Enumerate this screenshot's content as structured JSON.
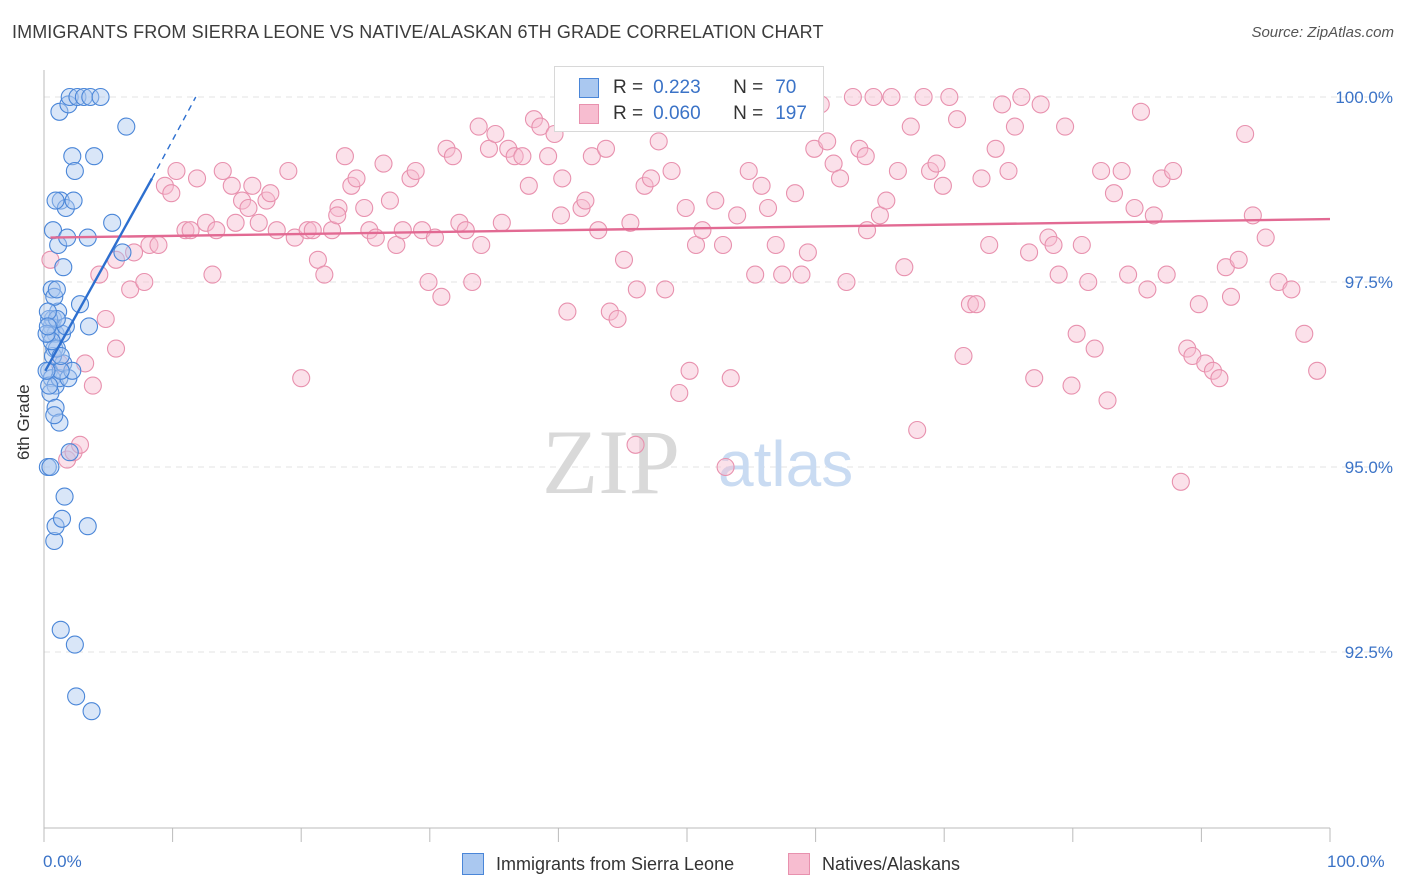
{
  "title": "IMMIGRANTS FROM SIERRA LEONE VS NATIVE/ALASKAN 6TH GRADE CORRELATION CHART",
  "source": "Source: ZipAtlas.com",
  "watermark": "ZIPatlas",
  "legend": {
    "rows": [
      {
        "r_label": "R =",
        "r_value": "0.223",
        "n_label": "N =",
        "n_value": "70"
      },
      {
        "r_label": "R =",
        "r_value": "0.060",
        "n_label": "N =",
        "n_value": "197"
      }
    ]
  },
  "bottom_legend": [
    "Immigrants from Sierra Leone",
    "Natives/Alaskans"
  ],
  "colors": {
    "blue_fill": "#aac8f0",
    "blue_stroke": "#4a86d8",
    "blue_line": "#2d6fcf",
    "pink_fill": "#f7bdd0",
    "pink_stroke": "#e891ae",
    "pink_line": "#e26a93",
    "axis_text": "#3b73c7",
    "grid": "#e3e3e3"
  },
  "chart_data": {
    "type": "scatter",
    "title": "IMMIGRANTS FROM SIERRA LEONE VS NATIVE/ALASKAN 6TH GRADE CORRELATION CHART",
    "xlabel": "",
    "ylabel": "6th Grade",
    "xlim": [
      0,
      100
    ],
    "ylim": [
      90.0,
      100.3
    ],
    "x_tick_labels": [
      "0.0%",
      "100.0%"
    ],
    "y_ticks": [
      92.5,
      95.0,
      97.5,
      100.0
    ],
    "y_tick_labels": [
      "92.5%",
      "95.0%",
      "97.5%",
      "100.0%"
    ],
    "grid": true,
    "series": [
      {
        "name": "Immigrants from Sierra Leone",
        "r": 0.223,
        "n": 70,
        "trend": {
          "x": [
            0.1,
            8.4
          ],
          "y": [
            96.3,
            98.9
          ]
        },
        "trend_dashed": {
          "x": [
            8.4,
            11.8
          ],
          "y": [
            98.9,
            100.0
          ]
        },
        "points": [
          [
            0.3,
            95.0
          ],
          [
            0.5,
            95.0
          ],
          [
            0.8,
            94.0
          ],
          [
            0.9,
            94.2
          ],
          [
            1.4,
            94.3
          ],
          [
            1.6,
            94.6
          ],
          [
            3.4,
            94.2
          ],
          [
            1.3,
            92.8
          ],
          [
            2.4,
            92.6
          ],
          [
            2.5,
            91.9
          ],
          [
            3.7,
            91.7
          ],
          [
            0.6,
            96.9
          ],
          [
            0.7,
            97.0
          ],
          [
            0.9,
            96.8
          ],
          [
            1.1,
            97.1
          ],
          [
            0.5,
            96.8
          ],
          [
            0.8,
            96.6
          ],
          [
            1.4,
            96.8
          ],
          [
            1.7,
            96.9
          ],
          [
            2.8,
            97.2
          ],
          [
            3.5,
            96.9
          ],
          [
            0.4,
            96.3
          ],
          [
            0.6,
            96.2
          ],
          [
            0.9,
            96.1
          ],
          [
            1.2,
            96.2
          ],
          [
            1.5,
            96.4
          ],
          [
            1.9,
            96.2
          ],
          [
            2.2,
            96.3
          ],
          [
            0.7,
            96.5
          ],
          [
            1.0,
            96.6
          ],
          [
            1.3,
            96.3
          ],
          [
            0.5,
            96.0
          ],
          [
            0.9,
            95.8
          ],
          [
            1.2,
            95.6
          ],
          [
            2.0,
            95.2
          ],
          [
            0.8,
            95.7
          ],
          [
            0.6,
            97.4
          ],
          [
            0.8,
            97.3
          ],
          [
            1.0,
            97.4
          ],
          [
            0.7,
            98.2
          ],
          [
            1.3,
            98.6
          ],
          [
            1.7,
            98.5
          ],
          [
            2.3,
            98.6
          ],
          [
            5.3,
            98.3
          ],
          [
            6.1,
            97.9
          ],
          [
            3.4,
            98.1
          ],
          [
            1.5,
            97.7
          ],
          [
            0.9,
            98.6
          ],
          [
            1.1,
            98.0
          ],
          [
            1.8,
            98.1
          ],
          [
            1.2,
            99.8
          ],
          [
            1.9,
            99.9
          ],
          [
            2.0,
            100.0
          ],
          [
            2.6,
            100.0
          ],
          [
            3.1,
            100.0
          ],
          [
            3.6,
            100.0
          ],
          [
            4.4,
            100.0
          ],
          [
            6.4,
            99.6
          ],
          [
            2.2,
            99.2
          ],
          [
            2.4,
            99.0
          ],
          [
            3.9,
            99.2
          ],
          [
            0.4,
            97.0
          ],
          [
            0.6,
            96.7
          ],
          [
            1.0,
            97.0
          ],
          [
            1.3,
            96.5
          ],
          [
            0.2,
            96.8
          ],
          [
            0.3,
            97.1
          ],
          [
            0.4,
            96.1
          ],
          [
            0.2,
            96.3
          ],
          [
            0.3,
            96.9
          ]
        ]
      },
      {
        "name": "Natives/Alaskans",
        "r": 0.06,
        "n": 197,
        "trend": {
          "x": [
            0.5,
            100
          ],
          "y": [
            98.1,
            98.35
          ]
        },
        "points": [
          [
            0.5,
            97.8
          ],
          [
            1.2,
            96.4
          ],
          [
            1.8,
            95.1
          ],
          [
            2.3,
            95.2
          ],
          [
            2.8,
            95.3
          ],
          [
            3.2,
            96.4
          ],
          [
            3.8,
            96.1
          ],
          [
            4.8,
            97.0
          ],
          [
            5.6,
            96.6
          ],
          [
            4.3,
            97.6
          ],
          [
            5.6,
            97.8
          ],
          [
            6.7,
            97.4
          ],
          [
            7.0,
            97.9
          ],
          [
            7.8,
            97.5
          ],
          [
            8.2,
            98.0
          ],
          [
            8.9,
            98.0
          ],
          [
            9.4,
            98.8
          ],
          [
            9.9,
            98.7
          ],
          [
            10.3,
            99.0
          ],
          [
            11.0,
            98.2
          ],
          [
            11.4,
            98.2
          ],
          [
            11.9,
            98.9
          ],
          [
            12.6,
            98.3
          ],
          [
            13.1,
            97.6
          ],
          [
            13.4,
            98.2
          ],
          [
            13.9,
            99.0
          ],
          [
            14.6,
            98.8
          ],
          [
            14.9,
            98.3
          ],
          [
            15.4,
            98.6
          ],
          [
            15.9,
            98.5
          ],
          [
            16.2,
            98.8
          ],
          [
            16.7,
            98.3
          ],
          [
            17.3,
            98.6
          ],
          [
            17.6,
            98.7
          ],
          [
            18.1,
            98.2
          ],
          [
            19.0,
            99.0
          ],
          [
            19.5,
            98.1
          ],
          [
            20.0,
            96.2
          ],
          [
            20.5,
            98.2
          ],
          [
            20.9,
            98.2
          ],
          [
            21.3,
            97.8
          ],
          [
            21.8,
            97.6
          ],
          [
            22.4,
            98.2
          ],
          [
            22.9,
            98.5
          ],
          [
            23.4,
            99.2
          ],
          [
            23.9,
            98.8
          ],
          [
            24.3,
            98.9
          ],
          [
            24.9,
            98.5
          ],
          [
            25.3,
            98.2
          ],
          [
            25.8,
            98.1
          ],
          [
            26.4,
            99.1
          ],
          [
            26.9,
            98.6
          ],
          [
            27.4,
            98.0
          ],
          [
            27.9,
            98.2
          ],
          [
            28.5,
            98.9
          ],
          [
            28.9,
            99.0
          ],
          [
            29.4,
            98.2
          ],
          [
            29.9,
            97.5
          ],
          [
            30.4,
            98.1
          ],
          [
            30.9,
            97.3
          ],
          [
            31.3,
            99.3
          ],
          [
            31.8,
            99.2
          ],
          [
            32.3,
            98.3
          ],
          [
            32.8,
            98.2
          ],
          [
            33.3,
            97.5
          ],
          [
            34.0,
            98.0
          ],
          [
            34.6,
            99.3
          ],
          [
            35.1,
            99.5
          ],
          [
            35.6,
            98.3
          ],
          [
            36.1,
            99.3
          ],
          [
            36.6,
            99.2
          ],
          [
            37.2,
            99.2
          ],
          [
            37.7,
            98.8
          ],
          [
            38.1,
            99.7
          ],
          [
            38.6,
            99.6
          ],
          [
            39.2,
            99.2
          ],
          [
            39.7,
            99.5
          ],
          [
            40.2,
            98.4
          ],
          [
            40.7,
            97.1
          ],
          [
            41.2,
            99.9
          ],
          [
            41.8,
            98.5
          ],
          [
            42.1,
            98.6
          ],
          [
            42.6,
            99.2
          ],
          [
            43.1,
            98.2
          ],
          [
            43.7,
            99.3
          ],
          [
            44.0,
            97.1
          ],
          [
            44.6,
            97.0
          ],
          [
            45.1,
            97.8
          ],
          [
            45.6,
            98.3
          ],
          [
            46.1,
            97.4
          ],
          [
            46.7,
            98.8
          ],
          [
            47.2,
            98.9
          ],
          [
            47.8,
            99.4
          ],
          [
            48.3,
            97.4
          ],
          [
            48.8,
            99.0
          ],
          [
            49.4,
            96.0
          ],
          [
            49.9,
            98.5
          ],
          [
            50.2,
            96.3
          ],
          [
            50.7,
            98.0
          ],
          [
            51.2,
            98.2
          ],
          [
            51.7,
            100.0
          ],
          [
            52.2,
            98.6
          ],
          [
            52.8,
            98.0
          ],
          [
            53.4,
            96.2
          ],
          [
            53.9,
            98.4
          ],
          [
            54.3,
            99.8
          ],
          [
            54.8,
            99.0
          ],
          [
            55.3,
            97.6
          ],
          [
            55.8,
            98.8
          ],
          [
            56.3,
            98.5
          ],
          [
            56.9,
            98.0
          ],
          [
            57.4,
            97.6
          ],
          [
            57.9,
            99.9
          ],
          [
            58.4,
            98.7
          ],
          [
            58.9,
            97.6
          ],
          [
            59.4,
            97.9
          ],
          [
            59.9,
            99.3
          ],
          [
            60.4,
            99.9
          ],
          [
            60.9,
            99.4
          ],
          [
            61.4,
            99.1
          ],
          [
            61.9,
            98.9
          ],
          [
            62.4,
            97.5
          ],
          [
            62.9,
            100.0
          ],
          [
            63.4,
            99.3
          ],
          [
            63.9,
            99.2
          ],
          [
            64.5,
            100.0
          ],
          [
            65.0,
            98.4
          ],
          [
            65.5,
            98.6
          ],
          [
            65.9,
            100.0
          ],
          [
            66.4,
            99.0
          ],
          [
            66.9,
            97.7
          ],
          [
            67.4,
            99.6
          ],
          [
            67.9,
            95.5
          ],
          [
            68.4,
            100.0
          ],
          [
            68.9,
            99.0
          ],
          [
            69.4,
            99.1
          ],
          [
            69.9,
            98.8
          ],
          [
            70.4,
            100.0
          ],
          [
            71.0,
            99.7
          ],
          [
            71.5,
            96.5
          ],
          [
            72.0,
            97.2
          ],
          [
            72.5,
            97.2
          ],
          [
            72.9,
            98.9
          ],
          [
            73.5,
            98.0
          ],
          [
            74.0,
            99.3
          ],
          [
            74.5,
            99.9
          ],
          [
            75.0,
            99.0
          ],
          [
            75.5,
            99.6
          ],
          [
            76.0,
            100.0
          ],
          [
            76.6,
            97.9
          ],
          [
            77.0,
            96.2
          ],
          [
            77.5,
            99.9
          ],
          [
            78.1,
            98.1
          ],
          [
            78.5,
            98.0
          ],
          [
            78.9,
            97.6
          ],
          [
            79.4,
            99.6
          ],
          [
            79.9,
            96.1
          ],
          [
            80.3,
            96.8
          ],
          [
            80.7,
            98.0
          ],
          [
            81.2,
            97.5
          ],
          [
            81.7,
            96.6
          ],
          [
            82.2,
            99.0
          ],
          [
            82.7,
            95.9
          ],
          [
            83.2,
            98.7
          ],
          [
            83.8,
            99.0
          ],
          [
            84.3,
            97.6
          ],
          [
            84.8,
            98.5
          ],
          [
            85.3,
            99.8
          ],
          [
            85.8,
            97.4
          ],
          [
            86.3,
            98.4
          ],
          [
            86.9,
            98.9
          ],
          [
            87.3,
            97.6
          ],
          [
            87.8,
            99.0
          ],
          [
            88.4,
            94.8
          ],
          [
            88.9,
            96.6
          ],
          [
            89.3,
            96.5
          ],
          [
            89.8,
            97.2
          ],
          [
            90.3,
            96.4
          ],
          [
            90.9,
            96.3
          ],
          [
            91.4,
            96.2
          ],
          [
            91.9,
            97.7
          ],
          [
            92.3,
            97.3
          ],
          [
            92.9,
            97.8
          ],
          [
            93.4,
            99.5
          ],
          [
            94.0,
            98.4
          ],
          [
            95.0,
            98.1
          ],
          [
            96.0,
            97.5
          ],
          [
            97.0,
            97.4
          ],
          [
            98.0,
            96.8
          ],
          [
            99.0,
            96.3
          ],
          [
            22.8,
            98.4
          ],
          [
            33.8,
            99.6
          ],
          [
            40.3,
            98.9
          ],
          [
            46.0,
            95.3
          ],
          [
            53.0,
            95.0
          ],
          [
            55.1,
            99.8
          ],
          [
            64.0,
            98.2
          ]
        ]
      }
    ]
  }
}
